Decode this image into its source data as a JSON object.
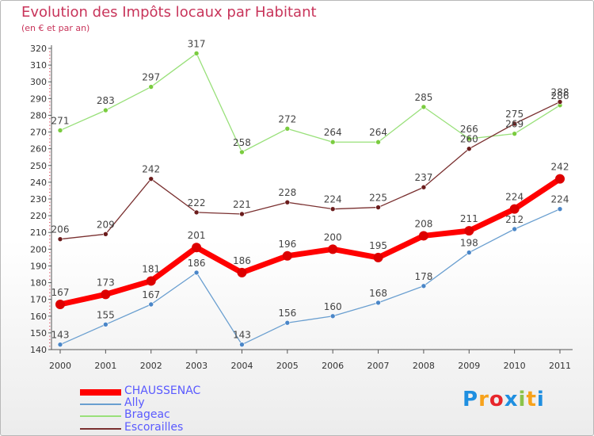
{
  "header": {
    "title": "Evolution des Impôts locaux par Habitant",
    "subtitle": "(en € et par an)"
  },
  "chart_data": {
    "type": "line",
    "title": "Evolution des Impôts locaux par Habitant",
    "subtitle": "(en € et par an)",
    "xlabel": "",
    "ylabel": "",
    "ylim": [
      140,
      320
    ],
    "ytick_step": 10,
    "grid": false,
    "categories": [
      "2000",
      "2001",
      "2002",
      "2003",
      "2004",
      "2005",
      "2006",
      "2007",
      "2008",
      "2009",
      "2010",
      "2011"
    ],
    "series": [
      {
        "name": "CHAUSSENAC",
        "values": [
          167,
          173,
          181,
          201,
          186,
          196,
          200,
          195,
          208,
          211,
          224,
          242
        ],
        "color": "#ff0000",
        "dot": "#dd0000",
        "emphasis": true
      },
      {
        "name": "Ally",
        "values": [
          143,
          155,
          167,
          186,
          143,
          156,
          160,
          168,
          178,
          198,
          212,
          224
        ],
        "color": "#6a9fd0",
        "dot": "#4a86c8",
        "emphasis": false
      },
      {
        "name": "Brageac",
        "values": [
          271,
          283,
          297,
          317,
          258,
          272,
          264,
          264,
          285,
          266,
          269,
          286
        ],
        "color": "#99e07a",
        "dot": "#7acc3f",
        "emphasis": false
      },
      {
        "name": "Escorailles",
        "values": [
          206,
          209,
          242,
          222,
          221,
          228,
          224,
          225,
          237,
          260,
          275,
          288
        ],
        "color": "#7a3030",
        "dot": "#6b1c1c",
        "emphasis": false
      }
    ],
    "legend_position": "bottom-left"
  },
  "logo": {
    "letters": [
      "P",
      "r",
      "o",
      "x",
      "i",
      "t",
      "i"
    ],
    "colors": [
      "#1f8fe0",
      "#f7a21b",
      "#e7262b",
      "#1f8fe0",
      "#8bc34a",
      "#f7a21b",
      "#1f8fe0"
    ]
  },
  "colors": {
    "title": "#c8345a",
    "axis": "#555555",
    "legend_text": "#5a5aff"
  }
}
